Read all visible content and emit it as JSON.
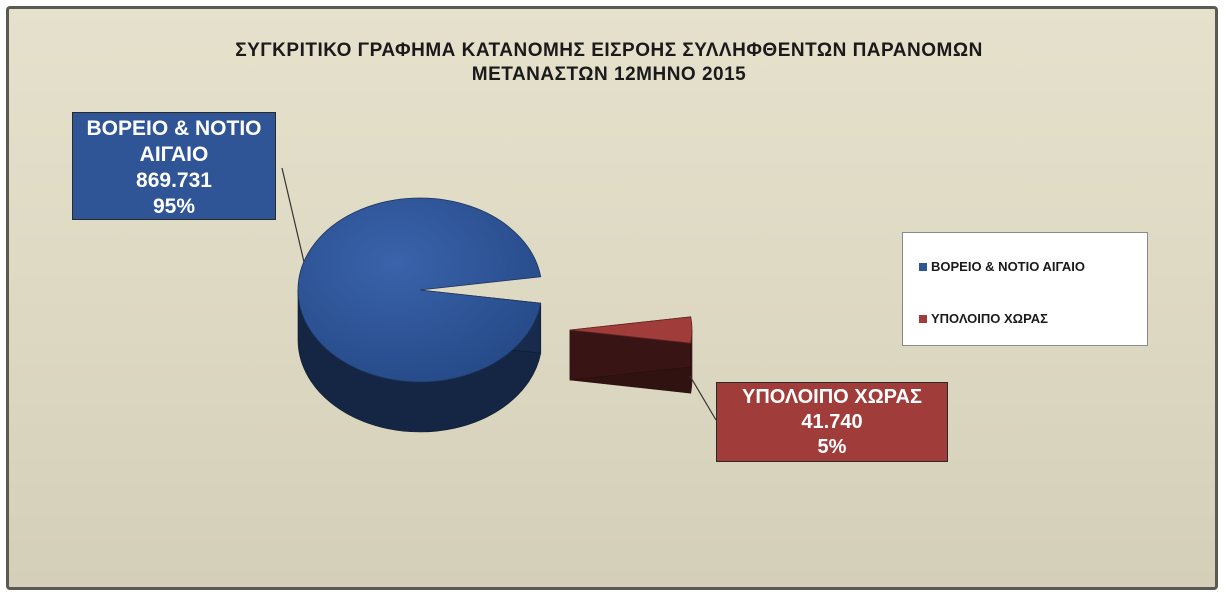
{
  "chart_data": {
    "type": "pie",
    "title": "ΣΥΓΚΡΙΤΙΚΟ ΓΡΑΦΗΜΑ ΚΑΤΑΝΟΜΗΣ ΕΙΣΡΟΗΣ ΣΥΛΛΗΦΘΕΝΤΩΝ  ΠΑΡΑΝΟΜΩΝ ΜΕΤΑΝΑΣΤΩΝ  12ΜΗΝΟ 2015",
    "title_lines": [
      "ΣΥΓΚΡΙΤΙΚΟ ΓΡΑΦΗΜΑ ΚΑΤΑΝΟΜΗΣ ΕΙΣΡΟΗΣ ΣΥΛΛΗΦΘΕΝΤΩΝ  ΠΑΡΑΝΟΜΩΝ",
      "ΜΕΤΑΝΑΣΤΩΝ  12ΜΗΝΟ 2015"
    ],
    "style": "3d-exploded",
    "legend_position": "right",
    "slices": [
      {
        "name": "ΒΟΡΕΙΟ & ΝΟΤΙΟ ΑΙΓΑΙΟ",
        "label_lines": [
          "ΒΟΡΕΙΟ & ΝΟΤΙΟ",
          "ΑΙΓΑΙΟ"
        ],
        "value": 869731,
        "value_label": "869.731",
        "percent": 95,
        "percent_label": "95%",
        "color": "#2f5597"
      },
      {
        "name": "ΥΠΟΛΟΙΠΟ ΧΩΡΑΣ",
        "label_lines": [
          "ΥΠΟΛΟΙΠΟ ΧΩΡΑΣ"
        ],
        "value": 41740,
        "value_label": "41.740",
        "percent": 5,
        "percent_label": "5%",
        "color": "#a03c3a"
      }
    ]
  }
}
